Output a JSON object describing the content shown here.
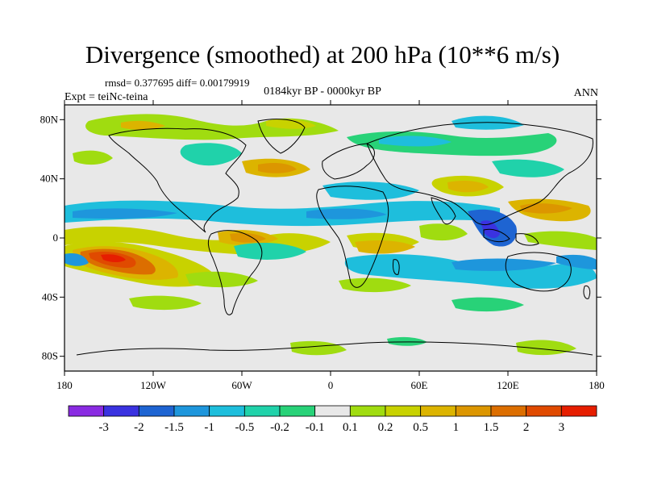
{
  "title": "Divergence (smoothed) at 200 hPa (10**6 m/s)",
  "stats": "rmsd= 0.377695 diff= 0.00179919",
  "experiment": "Expt = teiNc-teina",
  "period": "0184kyr BP - 0000kyr BP",
  "season": "ANN",
  "lat_ticks": [
    {
      "label": "80N",
      "lat": 80
    },
    {
      "label": "40N",
      "lat": 40
    },
    {
      "label": "0",
      "lat": 0
    },
    {
      "label": "40S",
      "lat": -40
    },
    {
      "label": "80S",
      "lat": -80
    }
  ],
  "lon_ticks": [
    {
      "label": "180",
      "lon": -180
    },
    {
      "label": "120W",
      "lon": -120
    },
    {
      "label": "60W",
      "lon": -60
    },
    {
      "label": "0",
      "lon": 0
    },
    {
      "label": "60E",
      "lon": 60
    },
    {
      "label": "120E",
      "lon": 120
    },
    {
      "label": "180",
      "lon": 180
    }
  ],
  "colorbar": {
    "colors": [
      "#8a2be2",
      "#3a32e0",
      "#1e64d2",
      "#1e96dc",
      "#1ebedc",
      "#20d2aa",
      "#28d278",
      "#e8e8e8",
      "#a0dc10",
      "#c8d200",
      "#dcb400",
      "#dc9600",
      "#dc6e00",
      "#e04a00",
      "#e61e00"
    ],
    "labels": [
      "-3",
      "-2",
      "-1.5",
      "-1",
      "-0.5",
      "-0.2",
      "-0.1",
      "0.1",
      "0.2",
      "0.5",
      "1",
      "1.5",
      "2",
      "3"
    ]
  }
}
